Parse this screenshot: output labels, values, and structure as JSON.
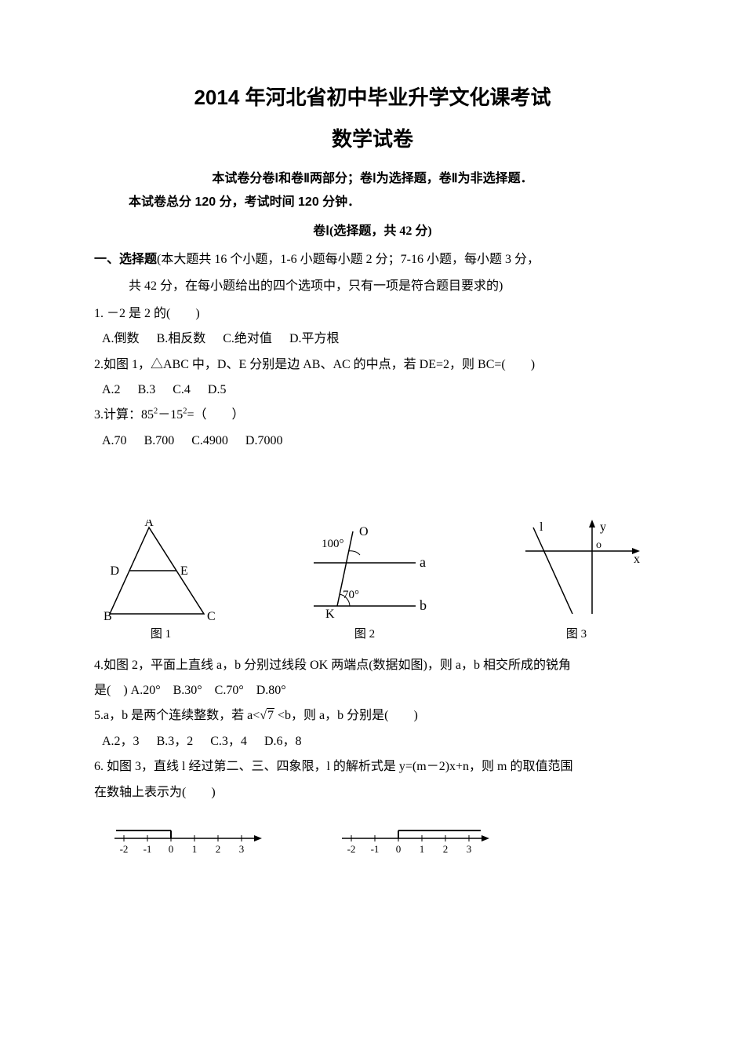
{
  "title": "2014 年河北省初中毕业升学文化课考试",
  "subtitle": "数学试卷",
  "instr1": "本试卷分卷Ⅰ和卷Ⅱ两部分；卷Ⅰ为选择题，卷Ⅱ为非选择题．",
  "instr2": "本试卷总分 120 分，考试时间 120 分钟．",
  "sectionLabel": "卷Ⅰ(选择题，共 42 分)",
  "sectionIntroLead": "一、选择题",
  "sectionIntroRest": "(本大题共 16 个小题，1-6 小题每小题 2 分；7-16 小题，每小题 3 分，",
  "sectionIntroLine2": "共 42 分，在每小题给出的四个选项中，只有一项是符合题目要求的)",
  "q1": {
    "stem": "1. －2 是 2 的(　　)",
    "A": "A.倒数",
    "B": "B.相反数",
    "C": "C.绝对值",
    "D": "D.平方根"
  },
  "q2": {
    "stem": "2.如图 1，△ABC 中，D、E 分别是边 AB、AC 的中点，若 DE=2，则 BC=(　　)",
    "A": "A.2",
    "B": "B.3",
    "C": "C.4",
    "D": "D.5"
  },
  "q3": {
    "stemPrefix": "3.计算：85",
    "stemMid": "－15",
    "stemSuffix": "=（　　）",
    "A": "A.70",
    "B": "B.700",
    "C": "C.4900",
    "D": "D.7000"
  },
  "q4": {
    "stem": "4.如图 2，平面上直线 a，b 分别过线段 OK 两端点(数据如图)，则 a，b 相交所成的锐角",
    "line2": "是(　)  A.20°　B.30°　C.70°　D.80°"
  },
  "q5": {
    "stemPrefix": "5.a，b 是两个连续整数，若 a<",
    "rad": "7",
    "stemSuffix": " <b，则 a，b 分别是(　　)",
    "A": "A.2，3",
    "B": "B.3，2",
    "C": "C.3，4",
    "D": "D.6，8"
  },
  "q6": {
    "stem": "6. 如图 3，直线 l 经过第二、三、四象限，l 的解析式是 y=(m－2)x+n，则 m 的取值范围",
    "line2": "在数轴上表示为(　　)"
  },
  "fig1": {
    "caption": "图 1",
    "labels": {
      "A": "A",
      "B": "B",
      "C": "C",
      "D": "D",
      "E": "E"
    },
    "stroke": "#000000",
    "points": {
      "A": [
        60,
        10
      ],
      "B": [
        10,
        120
      ],
      "C": [
        130,
        120
      ],
      "D": [
        35,
        65
      ],
      "E": [
        95,
        65
      ]
    }
  },
  "fig2": {
    "caption": "图 2",
    "labels": {
      "O": "O",
      "K": "K",
      "a": "a",
      "b": "b",
      "ang100": "100°",
      "ang70": "70°"
    },
    "stroke": "#000000"
  },
  "fig3": {
    "caption": "图 3",
    "labels": {
      "l": "l",
      "y": "y",
      "x": "x",
      "o": "o"
    },
    "stroke": "#000000"
  },
  "numberline": {
    "ticks": [
      -2,
      -1,
      0,
      1,
      2,
      3
    ],
    "stroke": "#000000",
    "A": {
      "bracketAt": 0,
      "filled": false,
      "shadeTo": "left"
    },
    "B": {
      "bracketAt": 0,
      "filled": false,
      "shadeTo": "right"
    }
  }
}
